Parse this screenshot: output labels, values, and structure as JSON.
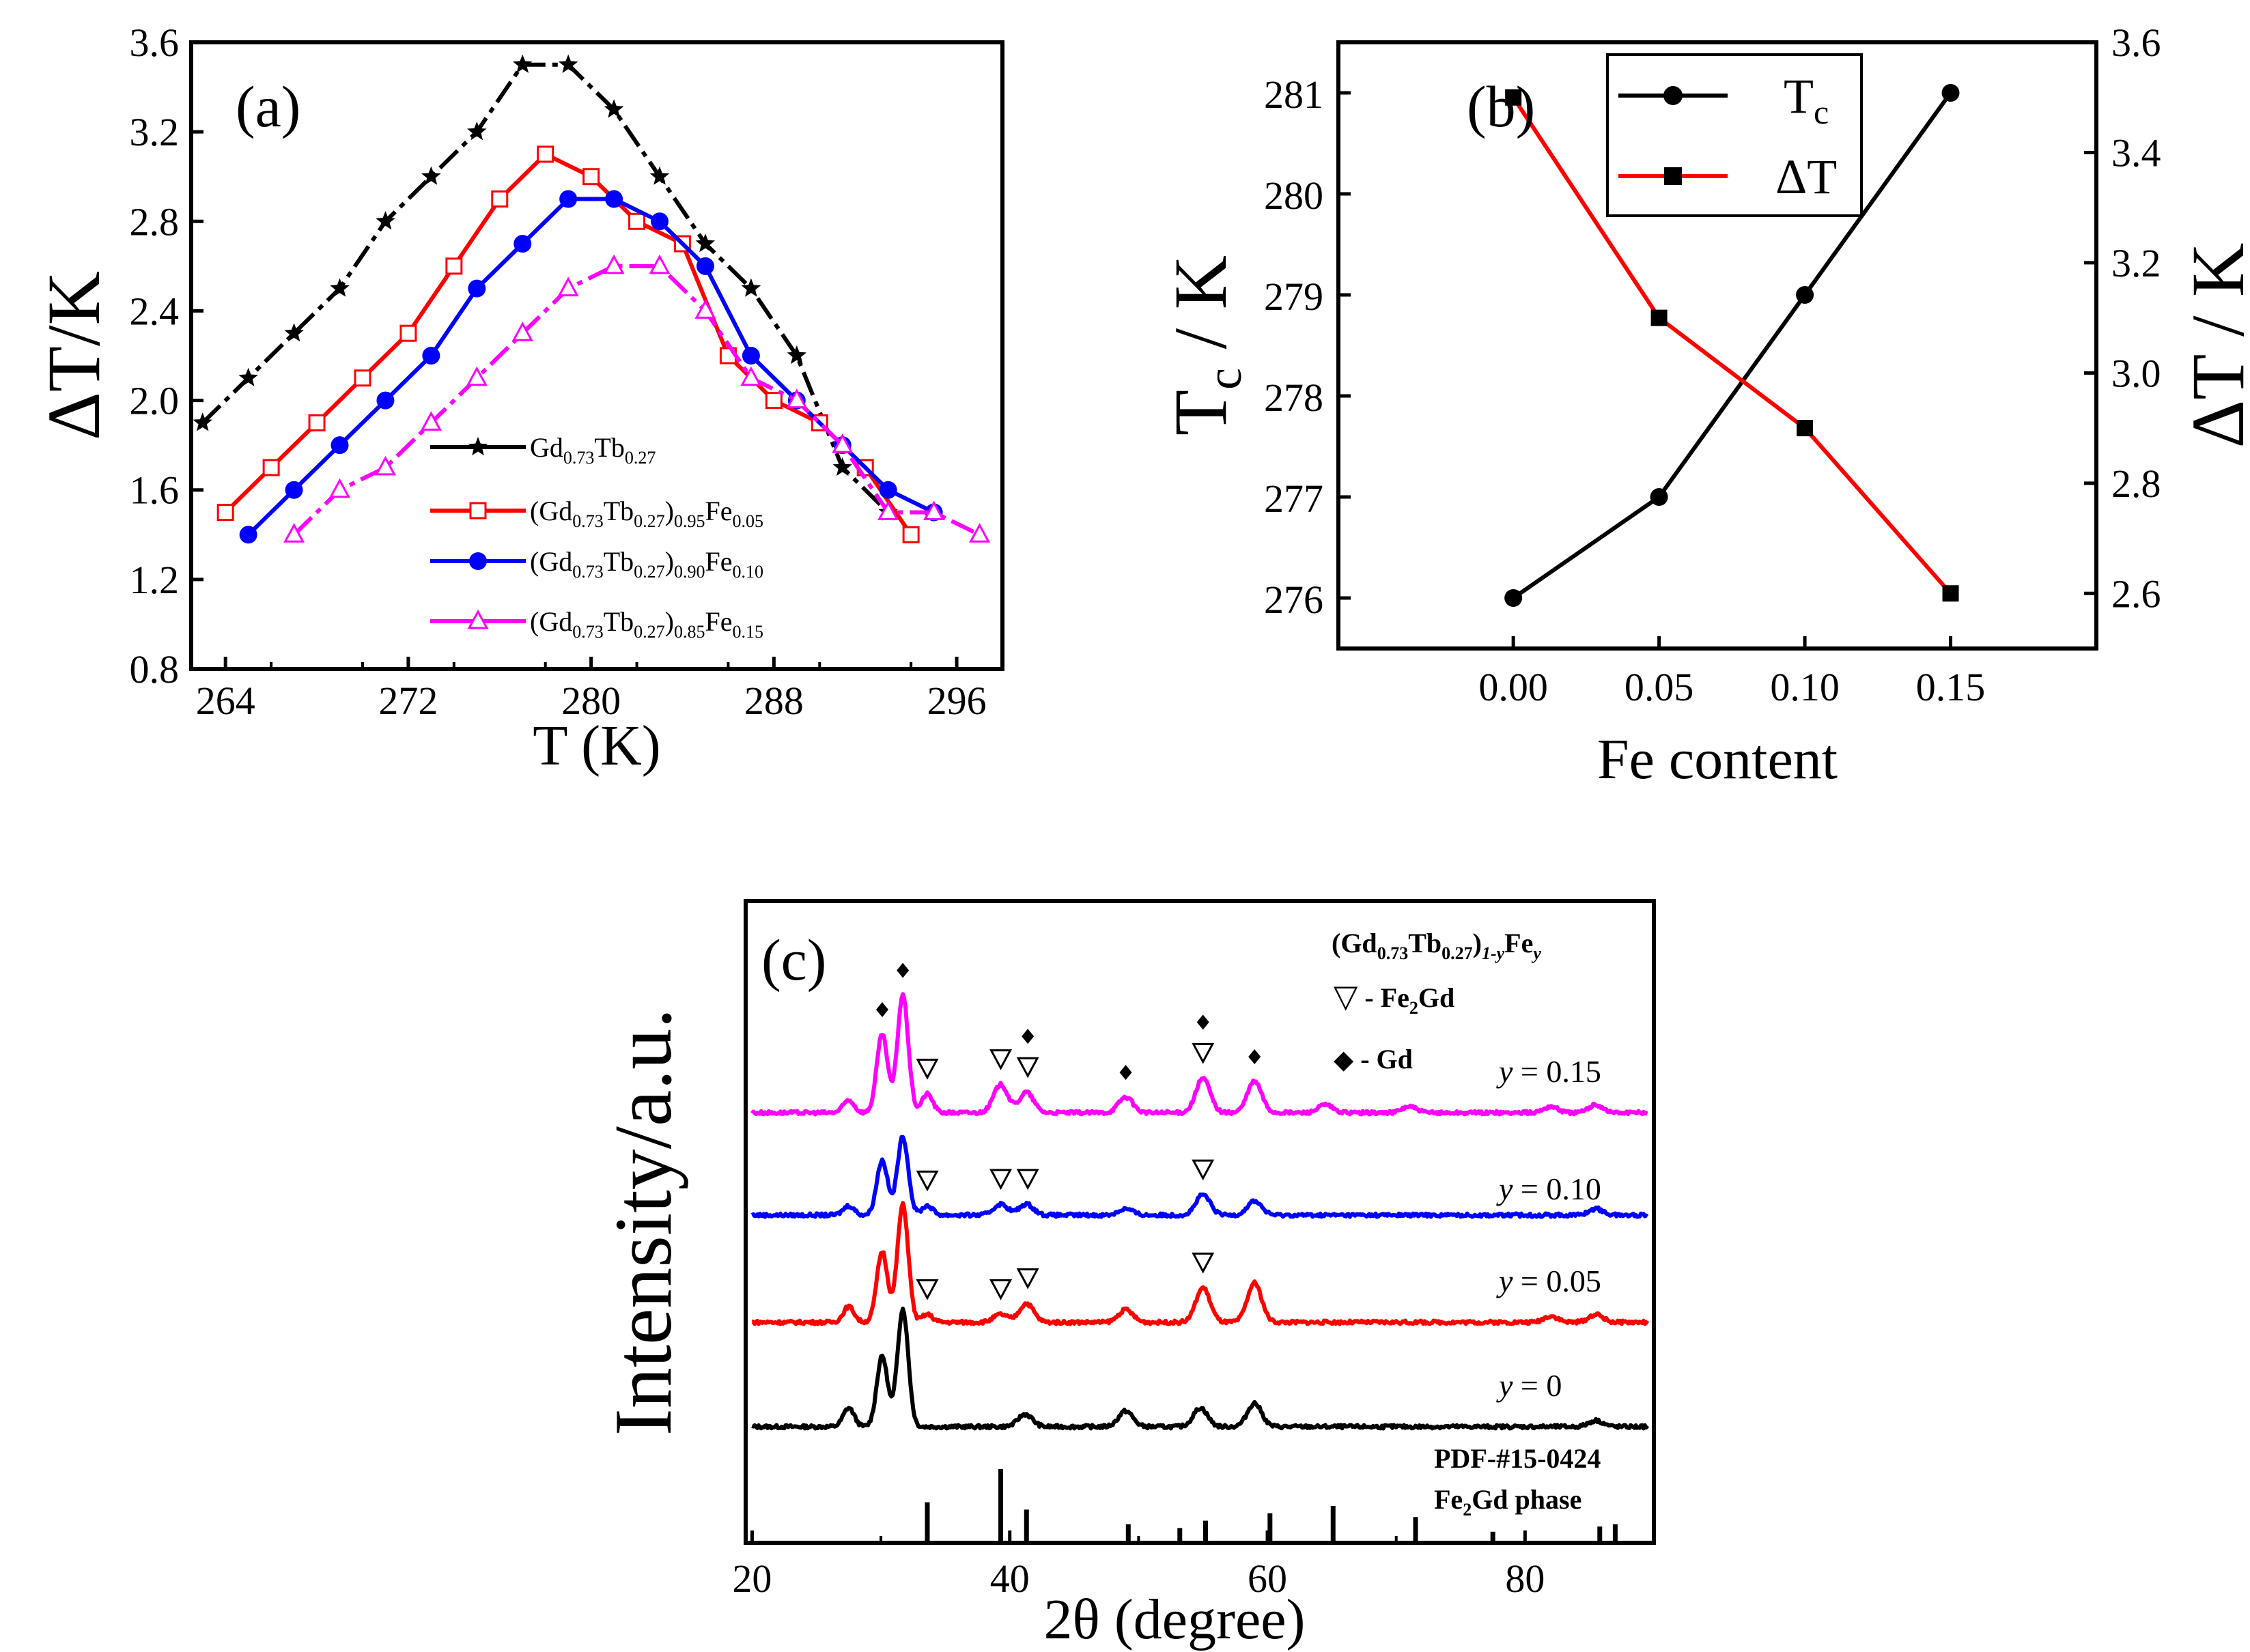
{
  "chart_data": [
    {
      "type": "line",
      "panel_label": "(a)",
      "xlabel": "T (K)",
      "ylabel": "ΔT/K",
      "xlim": [
        262.5,
        298
      ],
      "ylim": [
        0.8,
        3.6
      ],
      "xticks": [
        "264",
        "272",
        "280",
        "288",
        "296"
      ],
      "yticks": [
        "0.8",
        "1.2",
        "1.6",
        "2.0",
        "2.4",
        "2.8",
        "3.2",
        "3.6"
      ],
      "series": [
        {
          "name": "Gd0.73Tb0.27",
          "legend": {
            "pre": "Gd",
            "s1": "0.73",
            "mid": "Tb",
            "s2": "0.27",
            "post": "",
            "s3": ""
          },
          "color": "#000000",
          "marker": "star",
          "x": [
            263,
            265,
            267,
            269,
            271,
            273,
            275,
            277,
            279,
            281,
            283,
            285,
            287,
            289,
            291,
            293
          ],
          "y": [
            1.9,
            2.1,
            2.3,
            2.5,
            2.8,
            3.0,
            3.2,
            3.5,
            3.5,
            3.3,
            3.0,
            2.7,
            2.5,
            2.2,
            1.7,
            1.5
          ]
        },
        {
          "name": "(Gd0.73Tb0.27)0.95Fe0.05",
          "legend": {
            "pre": "(Gd",
            "s1": "0.73",
            "mid": "Tb",
            "s2": "0.27",
            "post": ")",
            "s3": "0.95",
            "fe": "Fe",
            "s4": "0.05"
          },
          "color": "#ff0000",
          "marker": "open-square",
          "x": [
            264,
            266,
            268,
            270,
            272,
            274,
            276,
            278,
            280,
            282,
            284,
            286,
            288,
            290,
            292,
            294
          ],
          "y": [
            1.5,
            1.7,
            1.9,
            2.1,
            2.3,
            2.6,
            2.9,
            3.1,
            3.0,
            2.8,
            2.7,
            2.2,
            2.0,
            1.9,
            1.7,
            1.4
          ]
        },
        {
          "name": "(Gd0.73Tb0.27)0.90Fe0.10",
          "legend": {
            "pre": "(Gd",
            "s1": "0.73",
            "mid": "Tb",
            "s2": "0.27",
            "post": ")",
            "s3": "0.90",
            "fe": "Fe",
            "s4": "0.10"
          },
          "color": "#0000ff",
          "marker": "filled-circle",
          "x": [
            265,
            267,
            269,
            271,
            273,
            275,
            277,
            279,
            281,
            283,
            285,
            287,
            289,
            291,
            293,
            295
          ],
          "y": [
            1.4,
            1.6,
            1.8,
            2.0,
            2.2,
            2.5,
            2.7,
            2.9,
            2.9,
            2.8,
            2.6,
            2.2,
            2.0,
            1.8,
            1.6,
            1.5
          ]
        },
        {
          "name": "(Gd0.73Tb0.27)0.85Fe0.15",
          "legend": {
            "pre": "(Gd",
            "s1": "0.73",
            "mid": "Tb",
            "s2": "0.27",
            "post": ")",
            "s3": "0.85",
            "fe": "Fe",
            "s4": "0.15"
          },
          "color": "#ff00ff",
          "marker": "open-triangle",
          "x": [
            267,
            269,
            271,
            273,
            275,
            277,
            279,
            281,
            283,
            285,
            287,
            289,
            291,
            293,
            295,
            297
          ],
          "y": [
            1.4,
            1.6,
            1.7,
            1.9,
            2.1,
            2.3,
            2.5,
            2.6,
            2.6,
            2.4,
            2.1,
            2.0,
            1.8,
            1.5,
            1.5,
            1.4
          ]
        }
      ]
    },
    {
      "type": "line",
      "panel_label": "(b)",
      "xlabel": "Fe content",
      "ylabel_left": {
        "pre": "T",
        "sub": "c",
        "post": " / K"
      },
      "ylabel_right": "ΔT / K",
      "xlim": [
        -0.06,
        0.2
      ],
      "ylim_left": [
        275.5,
        281.5
      ],
      "ylim_right": [
        2.5,
        3.6
      ],
      "xticks": [
        "0.00",
        "0.05",
        "0.10",
        "0.15"
      ],
      "yticks_left": [
        "276",
        "277",
        "278",
        "279",
        "280",
        "281"
      ],
      "yticks_right": [
        "2.6",
        "2.8",
        "3.0",
        "3.2",
        "3.4",
        "3.6"
      ],
      "series": [
        {
          "name": "Tc",
          "legend_main": "T",
          "legend_sub": "c",
          "color": "#000000",
          "marker": "filled-circle",
          "axis": "left",
          "x": [
            0.0,
            0.05,
            0.1,
            0.15
          ],
          "y": [
            276,
            277,
            279,
            281
          ]
        },
        {
          "name": "ΔT",
          "legend_main": "ΔT",
          "color": "#ff0000",
          "marker": "filled-square",
          "axis": "right",
          "x": [
            0.0,
            0.05,
            0.1,
            0.15
          ],
          "y": [
            3.5,
            3.1,
            2.9,
            2.6
          ]
        }
      ]
    },
    {
      "type": "line",
      "panel_label": "(c)",
      "xlabel": "2θ (degree)",
      "ylabel": "Intensity/a.u.",
      "xlim": [
        19.5,
        90
      ],
      "xticks": [
        "20",
        "40",
        "60",
        "80"
      ],
      "legend_title": {
        "pre": "(Gd",
        "s1": "0.73",
        "mid": "Tb",
        "s2": "0.27",
        "post": ")",
        "s3": "1-y",
        "fe": "Fe",
        "s4": "y"
      },
      "legend_items": [
        {
          "symbol": "▽",
          "label_pre": " - Fe",
          "label_sub": "2",
          "label_post": "Gd"
        },
        {
          "symbol": "◆",
          "label_pre": " - Gd",
          "label_sub": "",
          "label_post": ""
        }
      ],
      "reference": {
        "name_line1": "PDF-#15-0424",
        "name_line2_pre": "Fe",
        "name_line2_sub": "2",
        "name_line2_post": "Gd phase",
        "peaks": [
          [
            33.6,
            0.55
          ],
          [
            39.3,
            1.0
          ],
          [
            41.3,
            0.45
          ],
          [
            49.2,
            0.25
          ],
          [
            53.2,
            0.2
          ],
          [
            55.2,
            0.3
          ],
          [
            60.2,
            0.4
          ],
          [
            65.1,
            0.5
          ],
          [
            71.5,
            0.35
          ],
          [
            77.5,
            0.15
          ],
          [
            85.8,
            0.22
          ],
          [
            87.0,
            0.25
          ]
        ]
      },
      "series": [
        {
          "name": "y = 0",
          "label_var": "y",
          "label_val": " = 0",
          "color": "#000000",
          "peaks": [
            [
              27.5,
              0.12
            ],
            [
              30.1,
              0.45
            ],
            [
              31.7,
              0.75
            ],
            [
              41.2,
              0.08
            ],
            [
              49.0,
              0.1
            ],
            [
              54.8,
              0.12
            ],
            [
              59.0,
              0.15
            ],
            [
              85.5,
              0.04
            ]
          ],
          "triangles": [],
          "diamonds": []
        },
        {
          "name": "y = 0.05",
          "label_var": "y",
          "label_val": " = 0.05",
          "color": "#ff0000",
          "peaks": [
            [
              27.5,
              0.1
            ],
            [
              30.1,
              0.45
            ],
            [
              31.7,
              0.75
            ],
            [
              33.6,
              0.05
            ],
            [
              39.3,
              0.05
            ],
            [
              41.3,
              0.12
            ],
            [
              49.0,
              0.08
            ],
            [
              55.0,
              0.22
            ],
            [
              59.0,
              0.25
            ],
            [
              82.0,
              0.04
            ],
            [
              85.5,
              0.05
            ]
          ],
          "triangles": [
            33.6,
            39.3,
            41.4,
            55.0
          ],
          "diamonds": []
        },
        {
          "name": "y = 0.10",
          "label_var": "y",
          "label_val": " = 0.10",
          "color": "#0000ff",
          "peaks": [
            [
              27.5,
              0.06
            ],
            [
              30.1,
              0.35
            ],
            [
              31.7,
              0.5
            ],
            [
              33.6,
              0.06
            ],
            [
              39.3,
              0.07
            ],
            [
              41.3,
              0.07
            ],
            [
              49.0,
              0.04
            ],
            [
              55.0,
              0.13
            ],
            [
              59.0,
              0.09
            ],
            [
              85.5,
              0.04
            ]
          ],
          "triangles": [
            33.6,
            39.3,
            41.4,
            55.0
          ],
          "diamonds": []
        },
        {
          "name": "y = 0.15",
          "label_var": "y",
          "label_val": " = 0.15",
          "color": "#ff00ff",
          "peaks": [
            [
              27.5,
              0.08
            ],
            [
              30.1,
              0.5
            ],
            [
              31.7,
              0.75
            ],
            [
              33.6,
              0.12
            ],
            [
              39.3,
              0.18
            ],
            [
              41.3,
              0.13
            ],
            [
              49.0,
              0.1
            ],
            [
              55.0,
              0.22
            ],
            [
              59.0,
              0.2
            ],
            [
              64.5,
              0.05
            ],
            [
              71.0,
              0.04
            ],
            [
              82.0,
              0.04
            ],
            [
              85.5,
              0.05
            ]
          ],
          "triangles": [
            33.6,
            39.3,
            41.4,
            55.0
          ],
          "diamonds": [
            30.1,
            31.7,
            41.4,
            49.0,
            55.0,
            59.0
          ]
        }
      ]
    }
  ]
}
